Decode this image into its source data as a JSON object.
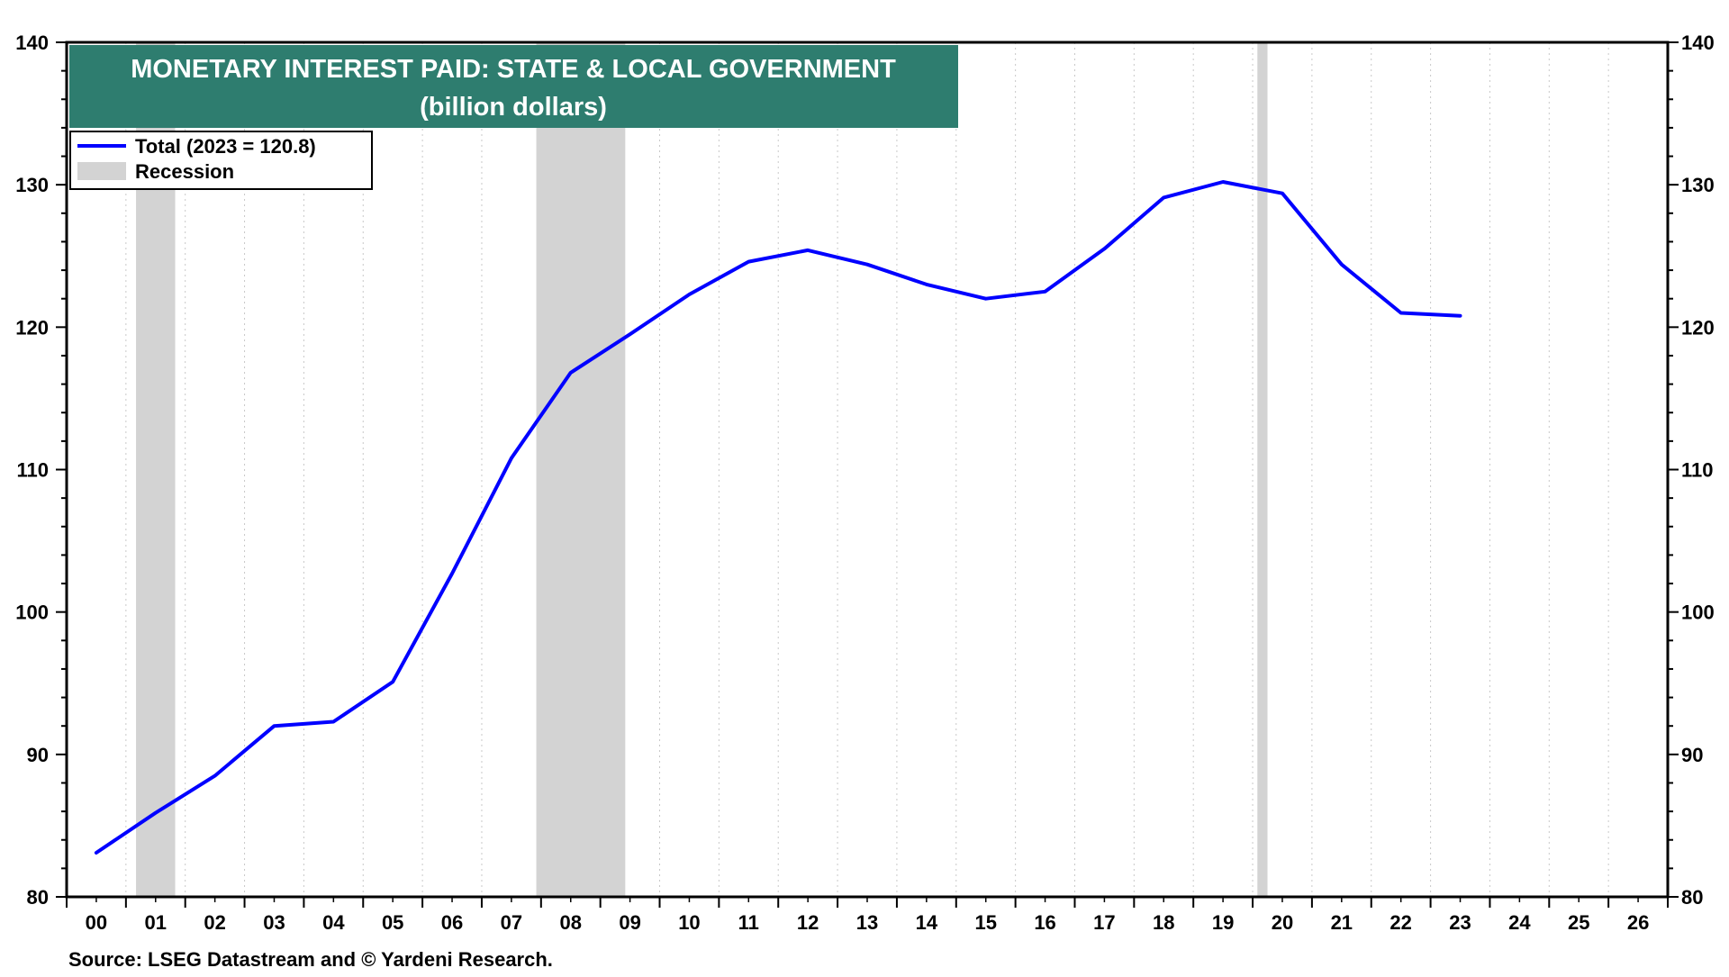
{
  "colors": {
    "line": "#0000FF",
    "recession": "#D3D3D3",
    "title_bg": "#2E7D6F",
    "title_text": "#FFFFFF",
    "frame": "#000000",
    "grid": "#C8C8C8"
  },
  "chart_data": {
    "type": "line",
    "title": "MONETARY INTEREST PAID: STATE & LOCAL GOVERNMENT",
    "subtitle": "(billion dollars)",
    "source": "Source: LSEG Datastream and © Yardeni Research.",
    "xlabel": "",
    "ylabel": "",
    "ylim": [
      80,
      140
    ],
    "yticks": [
      80,
      90,
      100,
      110,
      120,
      130,
      140
    ],
    "xlim": [
      2000,
      2027
    ],
    "xtick_years": [
      2000,
      2001,
      2002,
      2003,
      2004,
      2005,
      2006,
      2007,
      2008,
      2009,
      2010,
      2011,
      2012,
      2013,
      2014,
      2015,
      2016,
      2017,
      2018,
      2019,
      2020,
      2021,
      2022,
      2023,
      2024,
      2025,
      2026
    ],
    "xtick_labels": [
      "00",
      "01",
      "02",
      "03",
      "04",
      "05",
      "06",
      "07",
      "08",
      "09",
      "10",
      "11",
      "12",
      "13",
      "14",
      "15",
      "16",
      "17",
      "18",
      "19",
      "20",
      "21",
      "22",
      "23",
      "24",
      "25",
      "26"
    ],
    "grid": true,
    "legend_position": "top-left",
    "legend": [
      {
        "label": "Total (2023 = 120.8)",
        "kind": "line"
      },
      {
        "label": "Recession",
        "kind": "band"
      }
    ],
    "recessions": [
      {
        "start": 2001.17,
        "end": 2001.83
      },
      {
        "start": 2007.92,
        "end": 2009.42
      },
      {
        "start": 2020.08,
        "end": 2020.25
      }
    ],
    "series": [
      {
        "name": "Total (2023 = 120.8)",
        "points": [
          {
            "x": 2000.5,
            "y": 83.1
          },
          {
            "x": 2001.5,
            "y": 85.9
          },
          {
            "x": 2002.5,
            "y": 88.5
          },
          {
            "x": 2003.5,
            "y": 92.0
          },
          {
            "x": 2004.5,
            "y": 92.3
          },
          {
            "x": 2005.5,
            "y": 95.1
          },
          {
            "x": 2006.5,
            "y": 102.7
          },
          {
            "x": 2007.5,
            "y": 110.8
          },
          {
            "x": 2008.5,
            "y": 116.8
          },
          {
            "x": 2009.5,
            "y": 119.5
          },
          {
            "x": 2010.5,
            "y": 122.3
          },
          {
            "x": 2011.5,
            "y": 124.6
          },
          {
            "x": 2012.5,
            "y": 125.4
          },
          {
            "x": 2013.5,
            "y": 124.4
          },
          {
            "x": 2014.5,
            "y": 123.0
          },
          {
            "x": 2015.5,
            "y": 122.0
          },
          {
            "x": 2016.5,
            "y": 122.5
          },
          {
            "x": 2017.5,
            "y": 125.5
          },
          {
            "x": 2018.5,
            "y": 129.1
          },
          {
            "x": 2019.5,
            "y": 130.2
          },
          {
            "x": 2020.5,
            "y": 129.4
          },
          {
            "x": 2021.5,
            "y": 124.4
          },
          {
            "x": 2022.5,
            "y": 121.0
          },
          {
            "x": 2023.5,
            "y": 120.8
          }
        ]
      }
    ]
  }
}
